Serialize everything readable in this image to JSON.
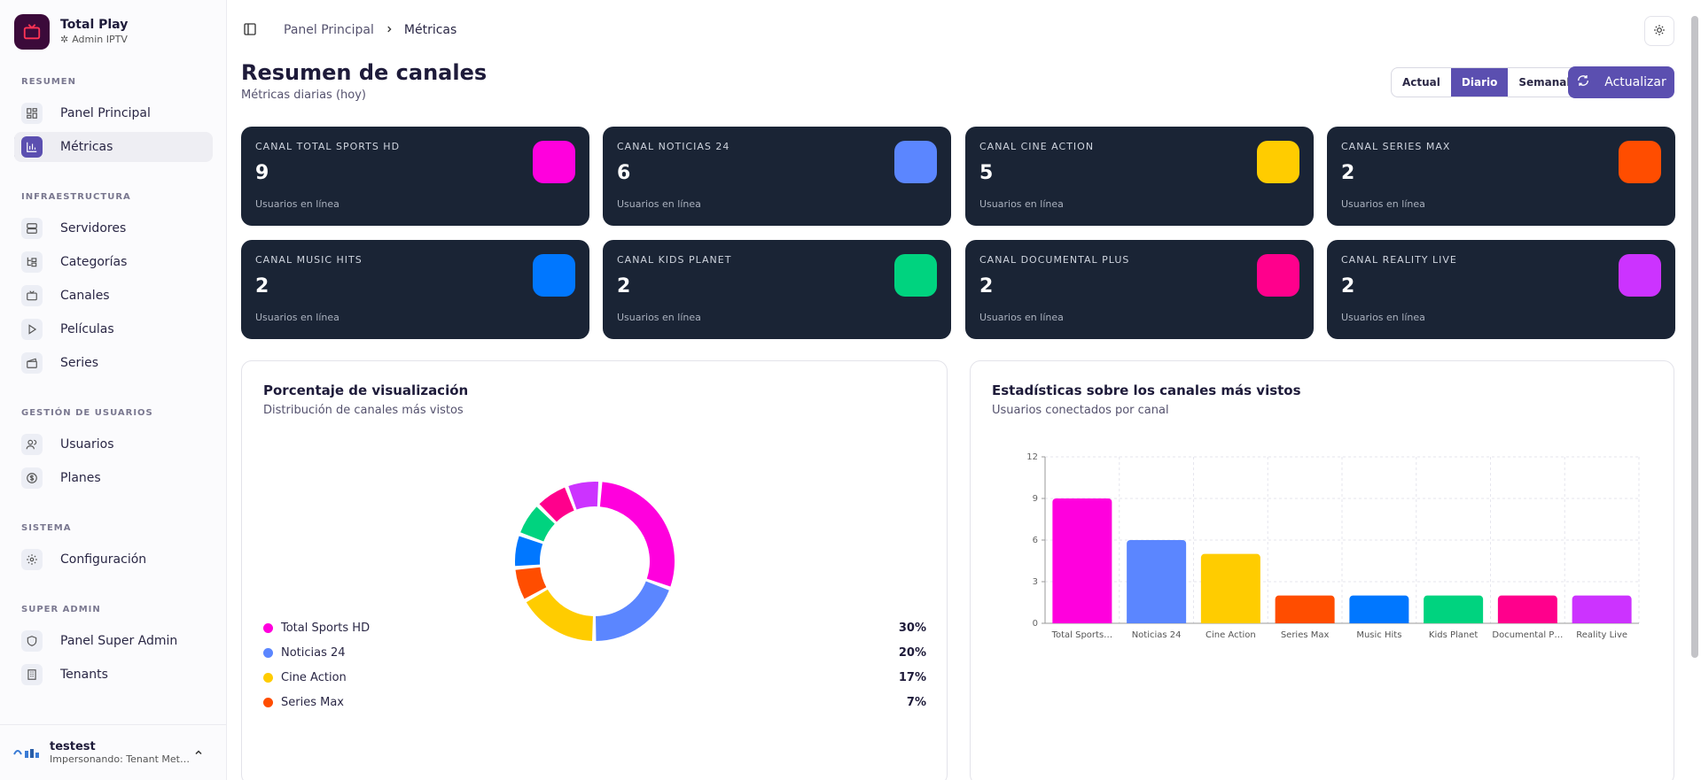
{
  "brand": {
    "title": "Total Play",
    "subtitle": "Admin IPTV"
  },
  "sidebar": {
    "sections": [
      {
        "label": "RESUMEN"
      },
      {
        "label": "INFRAESTRUCTURA"
      },
      {
        "label": "GESTIÓN DE USUARIOS"
      },
      {
        "label": "SISTEMA"
      },
      {
        "label": "SUPER ADMIN"
      }
    ],
    "items": [
      {
        "label": "Panel Principal",
        "icon": "dashboard-icon"
      },
      {
        "label": "Métricas",
        "icon": "bar-chart-icon",
        "active": true
      },
      {
        "label": "Servidores",
        "icon": "server-icon"
      },
      {
        "label": "Categorías",
        "icon": "folder-tree-icon"
      },
      {
        "label": "Canales",
        "icon": "tv-icon"
      },
      {
        "label": "Películas",
        "icon": "play-icon"
      },
      {
        "label": "Series",
        "icon": "clapperboard-icon"
      },
      {
        "label": "Usuarios",
        "icon": "users-icon"
      },
      {
        "label": "Planes",
        "icon": "dollar-circle-icon"
      },
      {
        "label": "Configuración",
        "icon": "gear-icon"
      },
      {
        "label": "Panel Super Admin",
        "icon": "shield-icon"
      },
      {
        "label": "Tenants",
        "icon": "building-icon"
      }
    ],
    "user": {
      "name": "testest",
      "subtitle": "Impersonando: Tenant Met…"
    }
  },
  "header": {
    "breadcrumb": [
      "Panel Principal",
      "Métricas"
    ]
  },
  "page": {
    "title": "Resumen de canales",
    "subtitle": "Métricas diarias (hoy)",
    "periods": [
      "Actual",
      "Diario",
      "Semanal"
    ],
    "selected_period": "Diario",
    "refresh_label": "Actualizar"
  },
  "cards": [
    {
      "name": "CANAL TOTAL SPORTS HD",
      "value": "9",
      "caption": "Usuarios en línea",
      "color": "#ff00dd"
    },
    {
      "name": "CANAL NOTICIAS 24",
      "value": "6",
      "caption": "Usuarios en línea",
      "color": "#5b86ff"
    },
    {
      "name": "CANAL CINE ACTION",
      "value": "5",
      "caption": "Usuarios en línea",
      "color": "#ffcc00"
    },
    {
      "name": "CANAL SERIES MAX",
      "value": "2",
      "caption": "Usuarios en línea",
      "color": "#ff4d00"
    },
    {
      "name": "CANAL MUSIC HITS",
      "value": "2",
      "caption": "Usuarios en línea",
      "color": "#0077ff"
    },
    {
      "name": "CANAL KIDS PLANET",
      "value": "2",
      "caption": "Usuarios en línea",
      "color": "#00d37f"
    },
    {
      "name": "CANAL DOCUMENTAL PLUS",
      "value": "2",
      "caption": "Usuarios en línea",
      "color": "#ff008c"
    },
    {
      "name": "CANAL REALITY LIVE",
      "value": "2",
      "caption": "Usuarios en línea",
      "color": "#cc33ff"
    }
  ],
  "donut_panel": {
    "title": "Porcentaje de visualización",
    "subtitle": "Distribución de canales más vistos"
  },
  "bar_panel": {
    "title": "Estadísticas sobre los canales más vistos",
    "subtitle": "Usuarios conectados por canal"
  },
  "chart_data": [
    {
      "type": "pie",
      "title": "Porcentaje de visualización",
      "categories": [
        "Total Sports HD",
        "Noticias 24",
        "Cine Action",
        "Series Max",
        "Music Hits",
        "Kids Planet",
        "Documental Plus",
        "Reality Live"
      ],
      "values": [
        30,
        20,
        17,
        7,
        7,
        7,
        7,
        7
      ],
      "colors": [
        "#ff00dd",
        "#5b86ff",
        "#ffcc00",
        "#ff4d00",
        "#0077ff",
        "#00d37f",
        "#ff008c",
        "#cc33ff"
      ],
      "visible_legend": [
        {
          "label": "Total Sports HD",
          "pct": "30%"
        },
        {
          "label": "Noticias 24",
          "pct": "20%"
        },
        {
          "label": "Cine Action",
          "pct": "17%"
        },
        {
          "label": "Series Max",
          "pct": "7%"
        }
      ]
    },
    {
      "type": "bar",
      "title": "Estadísticas sobre los canales más vistos",
      "categories": [
        "Total Sports…",
        "Noticias 24",
        "Cine Action",
        "Series Max",
        "Music Hits",
        "Kids Planet",
        "Documental P…",
        "Reality Live"
      ],
      "values": [
        9,
        6,
        5,
        2,
        2,
        2,
        2,
        2
      ],
      "colors": [
        "#ff00dd",
        "#5b86ff",
        "#ffcc00",
        "#ff4d00",
        "#0077ff",
        "#00d37f",
        "#ff008c",
        "#cc33ff"
      ],
      "ylim": [
        0,
        12
      ],
      "yticks": [
        0,
        3,
        6,
        9,
        12
      ],
      "grid": true
    }
  ]
}
